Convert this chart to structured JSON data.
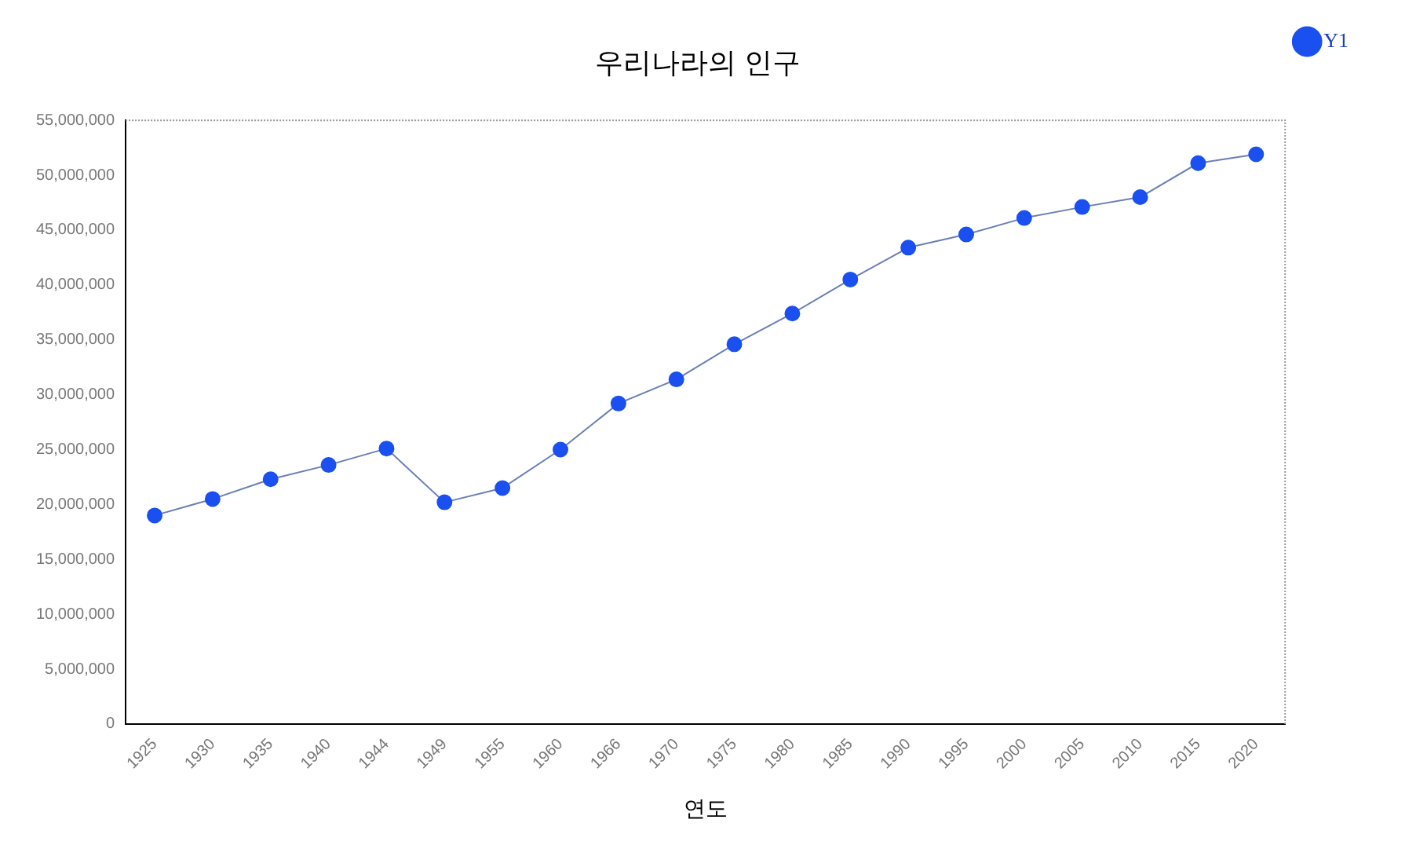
{
  "chart_data": {
    "type": "line",
    "title": "우리나라의 인구",
    "xlabel": "연도",
    "categories": [
      "1925",
      "1930",
      "1935",
      "1940",
      "1944",
      "1949",
      "1955",
      "1960",
      "1966",
      "1970",
      "1975",
      "1980",
      "1985",
      "1990",
      "1995",
      "2000",
      "2005",
      "2010",
      "2015",
      "2020"
    ],
    "series": [
      {
        "name": "Y1",
        "color": "#1a50f0",
        "values": [
          19000000,
          20500000,
          22300000,
          23600000,
          25100000,
          20200000,
          21500000,
          25000000,
          29200000,
          31400000,
          34600000,
          37400000,
          40500000,
          43400000,
          44600000,
          46100000,
          47100000,
          48000000,
          51100000,
          51900000
        ]
      }
    ],
    "ylim": [
      0,
      55000000
    ],
    "yticks": [
      {
        "value": 0,
        "label": "0"
      },
      {
        "value": 5000000,
        "label": "5,000,000"
      },
      {
        "value": 10000000,
        "label": "10,000,000"
      },
      {
        "value": 15000000,
        "label": "15,000,000"
      },
      {
        "value": 20000000,
        "label": "20,000,000"
      },
      {
        "value": 25000000,
        "label": "25,000,000"
      },
      {
        "value": 30000000,
        "label": "30,000,000"
      },
      {
        "value": 35000000,
        "label": "35,000,000"
      },
      {
        "value": 40000000,
        "label": "40,000,000"
      },
      {
        "value": 45000000,
        "label": "45,000,000"
      },
      {
        "value": 50000000,
        "label": "50,000,000"
      },
      {
        "value": 55000000,
        "label": "55,000,000"
      }
    ],
    "grid": false,
    "legend": "top right",
    "marker": "circle",
    "line_style": "solid"
  }
}
